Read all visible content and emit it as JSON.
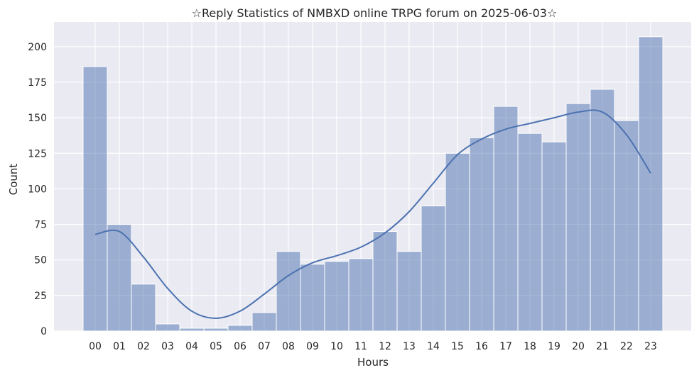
{
  "chart_data": {
    "type": "bar",
    "title": "☆Reply Statistics of NMBXD online TRPG forum on 2025-06-03☆",
    "xlabel": "Hours",
    "ylabel": "Count",
    "categories": [
      "00",
      "01",
      "02",
      "03",
      "04",
      "05",
      "06",
      "07",
      "08",
      "09",
      "10",
      "11",
      "12",
      "13",
      "14",
      "15",
      "16",
      "17",
      "18",
      "19",
      "20",
      "21",
      "22",
      "23"
    ],
    "values": [
      186,
      75,
      33,
      5,
      2,
      2,
      4,
      13,
      56,
      47,
      49,
      51,
      70,
      56,
      88,
      125,
      136,
      158,
      139,
      133,
      160,
      170,
      148,
      207
    ],
    "kde": [
      68,
      70,
      52,
      30,
      14,
      9,
      14,
      26,
      39,
      48,
      53,
      59,
      69,
      84,
      104,
      124,
      135,
      142,
      146,
      150,
      154,
      154,
      138,
      111
    ],
    "yticks": [
      0,
      25,
      50,
      75,
      100,
      125,
      150,
      175,
      200
    ],
    "ylim": [
      0,
      217.35
    ],
    "grid": true,
    "colors": {
      "background": "#eaeaf2",
      "grid": "#ffffff",
      "bar_fill": "#4c72b0",
      "bar_opacity": 0.5,
      "kde_line": "#4c72b0"
    }
  }
}
